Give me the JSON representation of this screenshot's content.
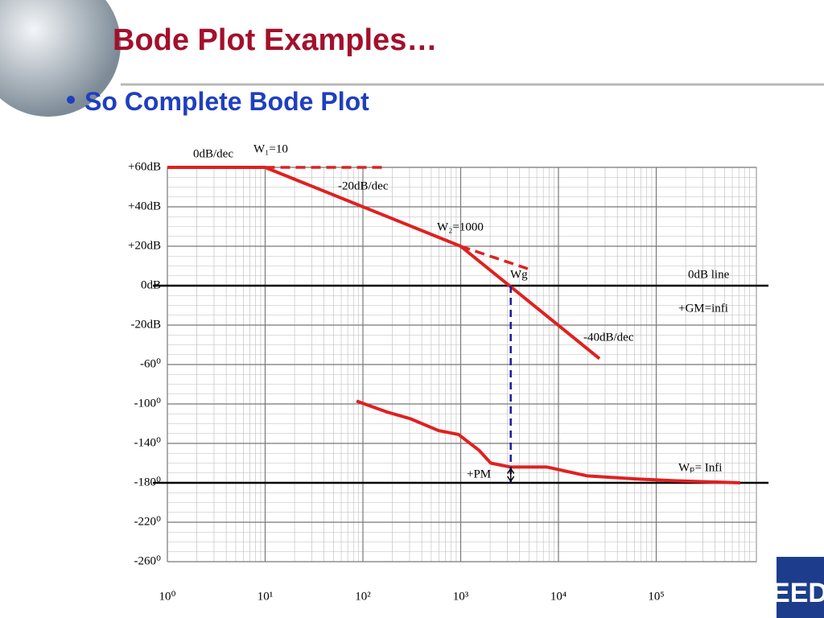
{
  "slide": {
    "title": "Bode Plot Examples…",
    "bullet": "So Complete Bode Plot"
  },
  "chart_data": {
    "type": "line",
    "xscale": "log",
    "xlim": [
      1,
      1000000
    ],
    "xticks": [
      {
        "value": 1,
        "label": "10⁰"
      },
      {
        "value": 10,
        "label": "10¹"
      },
      {
        "value": 100,
        "label": "10²"
      },
      {
        "value": 1000,
        "label": "10³"
      },
      {
        "value": 10000,
        "label": "10⁴"
      },
      {
        "value": 100000,
        "label": "10⁵"
      }
    ],
    "ylim": [
      -140,
      60
    ],
    "yticks": [
      {
        "value": 60,
        "label": "+60dB"
      },
      {
        "value": 40,
        "label": "+40dB"
      },
      {
        "value": 20,
        "label": "+20dB"
      },
      {
        "value": 0,
        "label": "0dB"
      },
      {
        "value": -20,
        "label": "-20dB"
      }
    ],
    "y2lim": [
      -260,
      140
    ],
    "y2ticks": [
      {
        "value": -60,
        "label": "-60⁰"
      },
      {
        "value": -100,
        "label": "-100⁰"
      },
      {
        "value": -140,
        "label": "-140⁰"
      },
      {
        "value": -180,
        "label": "-180⁰"
      },
      {
        "value": -220,
        "label": "-220⁰"
      },
      {
        "value": -260,
        "label": "-260⁰"
      }
    ],
    "grid": true,
    "series": [
      {
        "color": "#e02020",
        "x": [
          1,
          10,
          1000,
          26300
        ],
        "values": [
          60,
          60,
          20,
          -37
        ]
      },
      {
        "color": "#e02020",
        "dashed": true,
        "x": [
          10,
          174
        ],
        "values": [
          60,
          60
        ]
      },
      {
        "color": "#e02020",
        "dashed": true,
        "x": [
          1000,
          5250
        ],
        "values": [
          20,
          8
        ]
      },
      {
        "color": "#e02020",
        "axis": "y2",
        "x": [
          86,
          174,
          306,
          593,
          950,
          1540,
          2030,
          3250,
          7650,
          19800,
          61500,
          158000,
          724000
        ],
        "values": [
          -97,
          -108,
          -115,
          -127,
          -131,
          -147,
          -160,
          -164,
          -164,
          -173,
          -176,
          -178,
          -180
        ]
      }
    ],
    "reference_lines": [
      {
        "value": 0
      },
      {
        "value": -180,
        "axis": "y2"
      }
    ],
    "crossover": {
      "x": 3250,
      "color": "#1a1a9a"
    },
    "annotations": [
      "0dB/dec",
      "W₁=10",
      "-20dB/dec",
      "W₂=1000",
      "Wg",
      "0dB line",
      "+GM=infi",
      "-40dB/dec",
      "Wₚ= Infi",
      "+PM"
    ]
  }
}
